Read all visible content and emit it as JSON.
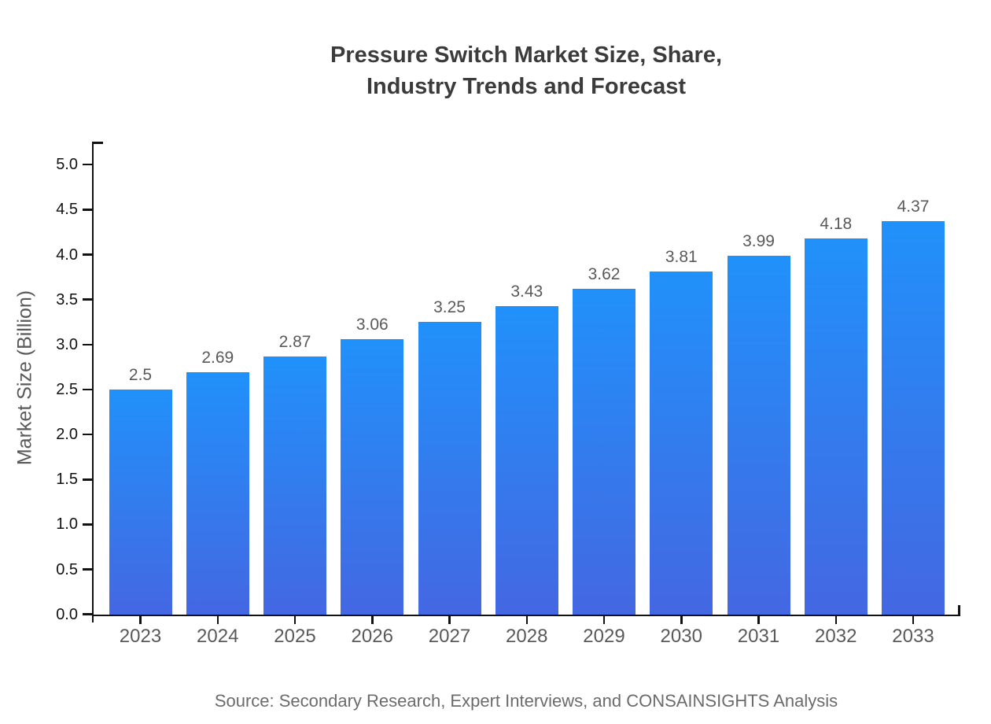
{
  "header": {
    "title_display": "Pressure Switch Market Size, Share,\nIndustry Trends and Forecast"
  },
  "chart_data": {
    "type": "bar",
    "title": "Pressure Switch Market Size, Share, Industry Trends and Forecast",
    "xlabel": "",
    "ylabel": "Market Size (Billion)",
    "categories": [
      "2023",
      "2024",
      "2025",
      "2026",
      "2027",
      "2028",
      "2029",
      "2030",
      "2031",
      "2032",
      "2033"
    ],
    "values": [
      2.5,
      2.69,
      2.87,
      3.06,
      3.25,
      3.43,
      3.62,
      3.81,
      3.99,
      4.18,
      4.37
    ],
    "value_labels": [
      "2.5",
      "2.69",
      "2.87",
      "3.06",
      "3.25",
      "3.43",
      "3.62",
      "3.81",
      "3.99",
      "4.18",
      "4.37"
    ],
    "ylim": [
      0,
      5.2
    ],
    "yticks": [
      0.0,
      0.5,
      1.0,
      1.5,
      2.0,
      2.5,
      3.0,
      3.5,
      4.0,
      4.5,
      5.0
    ],
    "ytick_labels": [
      "0.0",
      "0.5",
      "1.0",
      "1.5",
      "2.0",
      "2.5",
      "3.0",
      "3.5",
      "4.0",
      "4.5",
      "5.0"
    ],
    "grid": false,
    "legend": null
  },
  "colors": {
    "bar_gradient_top": "#2191FA",
    "bar_gradient_bottom": "#4467E2",
    "axis": "#111111",
    "title_text": "#3b3b3b",
    "tick_text": "#595959",
    "source_text": "#6b6b6b"
  },
  "footer": {
    "source_note": "Source: Secondary Research, Expert Interviews, and CONSAINSIGHTS Analysis"
  }
}
